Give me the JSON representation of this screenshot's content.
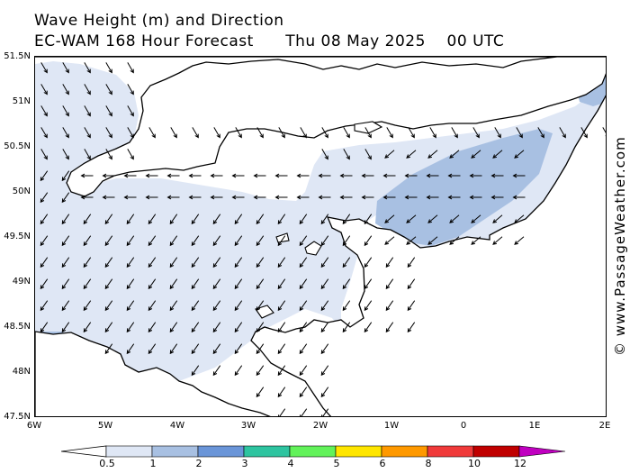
{
  "title_line1": "Wave Height (m) and Direction",
  "title_model": "EC-WAM 168 Hour Forecast",
  "title_date": "Thu 08 May 2025",
  "title_time": "00 UTC",
  "credit": "© www.PassageWeather.com",
  "lat_labels": [
    "51.5N",
    "51N",
    "50.5N",
    "50N",
    "49.5N",
    "49N",
    "48.5N",
    "48N",
    "47.5N"
  ],
  "lon_labels": [
    "6W",
    "5W",
    "4W",
    "3W",
    "2W",
    "1W",
    "0",
    "1E",
    "2E"
  ],
  "legend_ticks": [
    "0.5",
    "1",
    "2",
    "3",
    "4",
    "5",
    "6",
    "8",
    "10",
    "12"
  ],
  "legend_colors": [
    "#ffffff",
    "#dfe7f5",
    "#a8c0e2",
    "#6a95d8",
    "#2ec4a0",
    "#62f25a",
    "#ffe600",
    "#ff9900",
    "#f03a3a",
    "#c00000",
    "#c000c0"
  ],
  "map_colors": {
    "land": "#ffffff",
    "sea_low": "#ffffff",
    "sea_mid": "#dfe7f5",
    "sea_high": "#a8c0e2",
    "coast": "#000000"
  }
}
